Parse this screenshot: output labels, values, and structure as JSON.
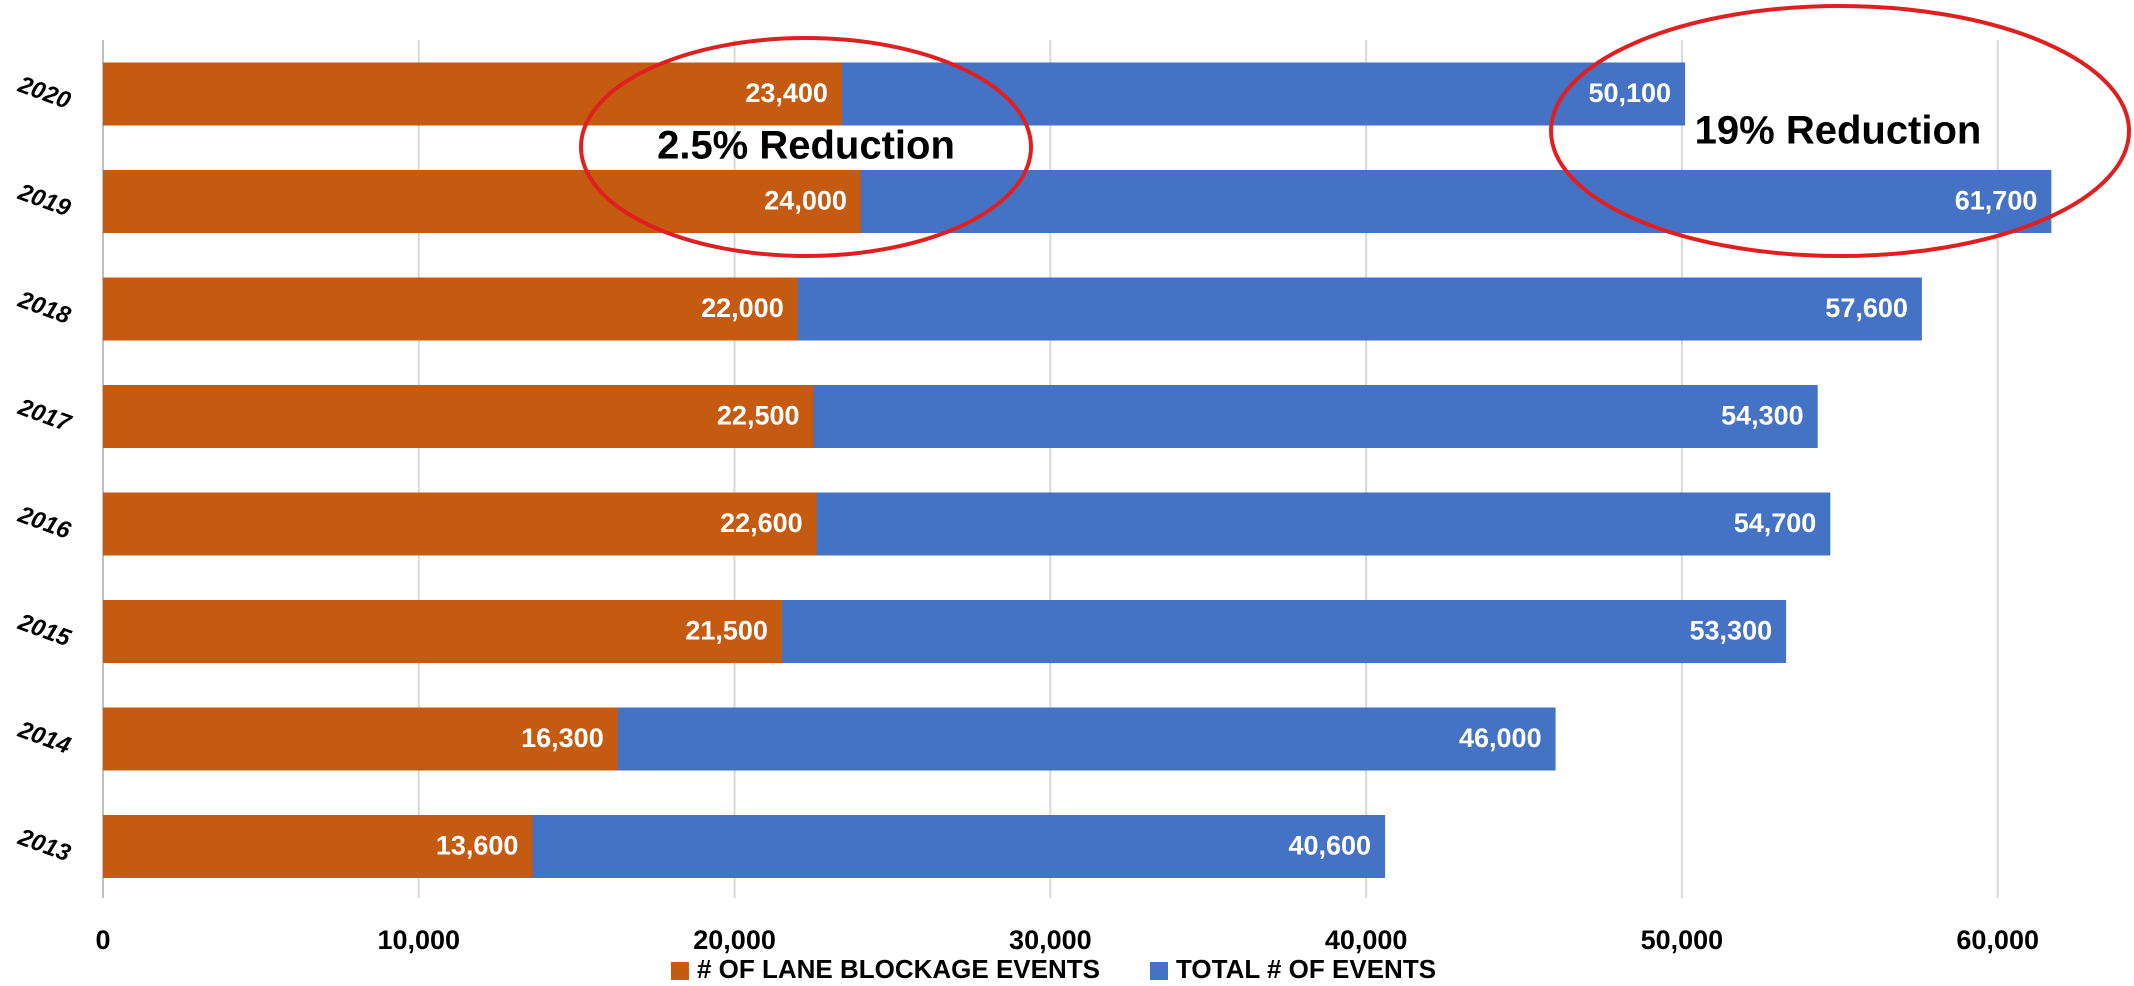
{
  "chart_data": {
    "type": "bar",
    "orientation": "horizontal",
    "categories": [
      "2020",
      "2019",
      "2018",
      "2017",
      "2016",
      "2015",
      "2014",
      "2013"
    ],
    "series": [
      {
        "name": "# OF LANE BLOCKAGE EVENTS",
        "color": "#c55a11",
        "values": [
          23400,
          24000,
          22000,
          22500,
          22600,
          21500,
          16300,
          13600
        ],
        "value_labels": [
          "23,400",
          "24,000",
          "22,000",
          "22,500",
          "22,600",
          "21,500",
          "16,300",
          "13,600"
        ]
      },
      {
        "name": "TOTAL # OF EVENTS",
        "color": "#4472c4",
        "values": [
          50100,
          61700,
          57600,
          54300,
          54700,
          53300,
          46000,
          40600
        ],
        "value_labels": [
          "50,100",
          "61,700",
          "57,600",
          "54,300",
          "54,700",
          "53,300",
          "46,000",
          "40,600"
        ]
      }
    ],
    "xlim": [
      0,
      64000
    ],
    "xticks": [
      0,
      {
        "value": 10000,
        "label": "10,000"
      },
      {
        "value": 20000,
        "label": "20,000"
      },
      {
        "value": 30000,
        "label": "30,000"
      },
      {
        "value": 40000,
        "label": "40,000"
      },
      {
        "value": 50000,
        "label": "50,000"
      },
      {
        "value": 60000,
        "label": "60,000"
      }
    ],
    "grid": true,
    "legend": "bottom",
    "annotations": [
      {
        "text": "2.5% Reduction",
        "color": "#e02020"
      },
      {
        "text": "19% Reduction",
        "color": "#e02020"
      }
    ]
  }
}
